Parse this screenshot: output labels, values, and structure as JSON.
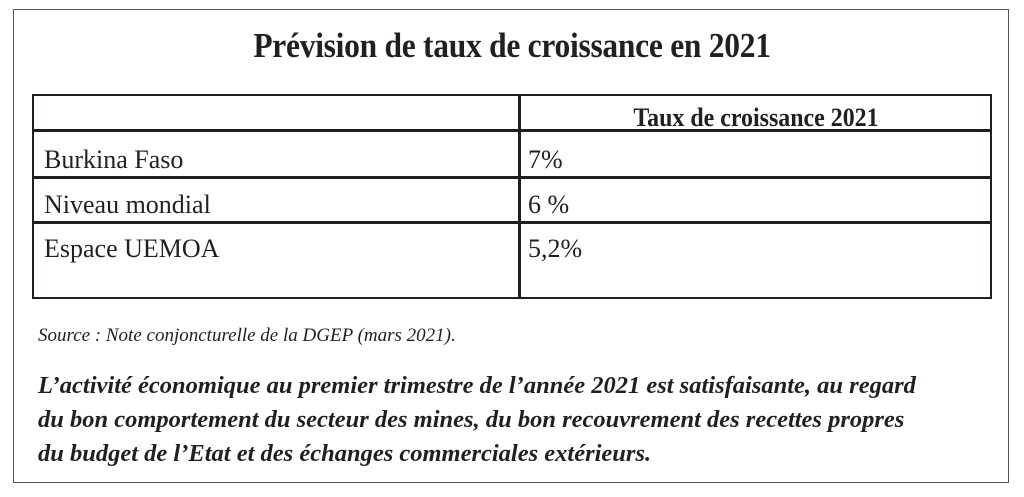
{
  "title": "Prévision de taux de croissance en 2021",
  "table": {
    "header": "Taux de croissance 2021",
    "rows": [
      {
        "name": "Burkina Faso",
        "value": "7%"
      },
      {
        "name": "Niveau mondial",
        "value": "6 %"
      },
      {
        "name": "Espace UEMOA",
        "value": "5,2%"
      }
    ]
  },
  "source": "Source : Note conjoncturelle de la DGEP (mars 2021).",
  "paragraph": {
    "lines": [
      "L’activité économique au premier trimestre de l’année 2021 est satisfaisante, au regard",
      "du bon comportement du secteur des mines, du bon recouvrement des recettes propres",
      "du budget de l’Etat et des échanges commerciales extérieurs."
    ]
  }
}
